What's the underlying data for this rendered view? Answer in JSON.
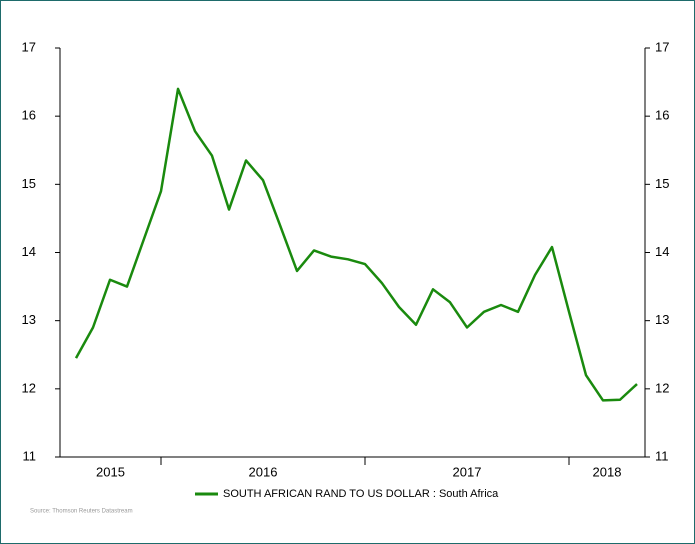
{
  "chart_data": {
    "type": "line",
    "categories": [
      null,
      null,
      null,
      null,
      null,
      null,
      null,
      null,
      null,
      null,
      null,
      null,
      null,
      null,
      null,
      null,
      null,
      null,
      null,
      null,
      null,
      null,
      null,
      null,
      null,
      null,
      null,
      null,
      null,
      null,
      null,
      null,
      null,
      null
    ],
    "x_period_labels": [
      "2015",
      "2016",
      "2017",
      "2018"
    ],
    "series": [
      {
        "name": "SOUTH AFRICAN RAND TO US DOLLAR : South Africa",
        "color": "#1a8a0e",
        "values": [
          12.45,
          12.9,
          13.6,
          13.5,
          14.2,
          14.9,
          16.4,
          15.78,
          15.42,
          14.63,
          15.35,
          15.06,
          14.4,
          13.73,
          14.03,
          13.94,
          13.9,
          13.83,
          13.55,
          13.2,
          12.94,
          13.46,
          13.27,
          12.9,
          13.13,
          13.23,
          13.13,
          13.67,
          14.08,
          13.13,
          12.2,
          11.83,
          11.84,
          12.07
        ]
      }
    ],
    "ylim": [
      11,
      17
    ],
    "yticks": [
      11,
      12,
      13,
      14,
      15,
      16,
      17
    ],
    "y2lim": [
      11,
      17
    ],
    "y2ticks": [
      11,
      12,
      13,
      14,
      15,
      16,
      17
    ],
    "source": "Source: Thomson Reuters Datastream"
  }
}
